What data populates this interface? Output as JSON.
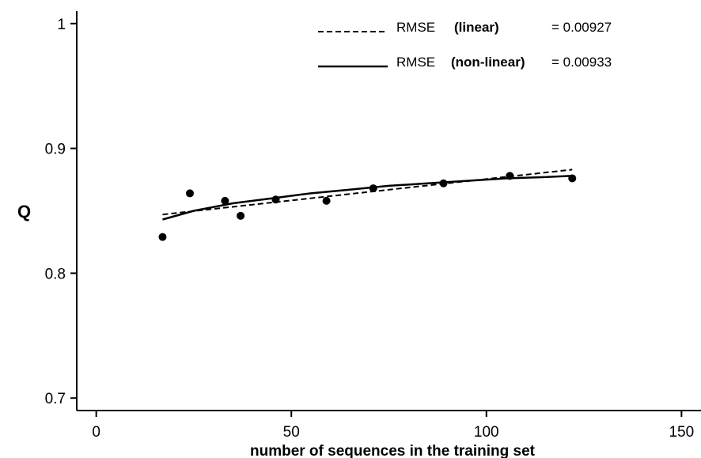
{
  "chart_data": {
    "type": "scatter",
    "title": "",
    "xlabel": "number of sequences in the training set",
    "ylabel": "Q",
    "xlim": [
      -5,
      155
    ],
    "ylim": [
      0.69,
      1.01
    ],
    "x_ticks": [
      0,
      50,
      100,
      150
    ],
    "y_ticks": [
      0.7,
      0.8,
      0.9,
      1
    ],
    "x_tick_labels": [
      "0",
      "50",
      "100",
      "150"
    ],
    "y_tick_labels": [
      "0.7",
      "0.8",
      "0.9",
      "1"
    ],
    "grid": false,
    "legend_position": "top-right",
    "points": {
      "x": [
        17,
        24,
        33,
        37,
        46,
        59,
        71,
        89,
        106,
        122
      ],
      "y": [
        0.829,
        0.864,
        0.858,
        0.846,
        0.859,
        0.858,
        0.868,
        0.872,
        0.878,
        0.876
      ]
    },
    "series": [
      {
        "name": "RMSE",
        "qualifier": "(linear)",
        "value_text": "= 0.00927",
        "style": "dashed",
        "x": [
          17,
          122
        ],
        "y": [
          0.847,
          0.883
        ]
      },
      {
        "name": "RMSE",
        "qualifier": "(non-linear)",
        "value_text": "= 0.00933",
        "style": "solid",
        "x": [
          17,
          25,
          35,
          45,
          55,
          65,
          75,
          85,
          95,
          105,
          115,
          122
        ],
        "y": [
          0.843,
          0.85,
          0.856,
          0.86,
          0.864,
          0.867,
          0.87,
          0.872,
          0.874,
          0.876,
          0.877,
          0.878
        ]
      }
    ]
  }
}
